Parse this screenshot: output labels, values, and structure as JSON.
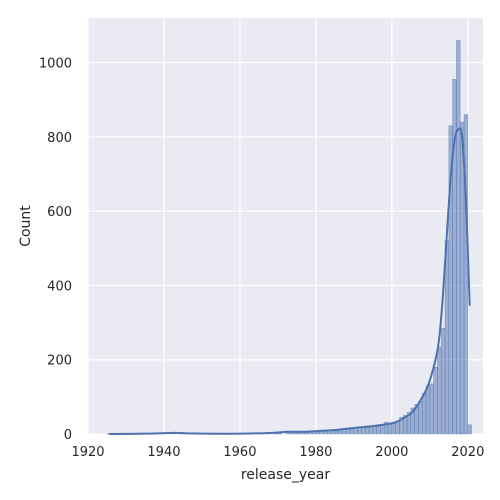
{
  "chart_data": {
    "type": "bar",
    "title": "",
    "xlabel": "release_year",
    "ylabel": "Count",
    "xlim": [
      1920,
      2024
    ],
    "ylim": [
      0,
      1120
    ],
    "x_ticks": [
      1920,
      1940,
      1960,
      1980,
      2000,
      2020
    ],
    "y_ticks": [
      0,
      200,
      400,
      600,
      800,
      1000
    ],
    "grid": true,
    "background": "#eaeaf2",
    "grid_color": "#ffffff",
    "bar_color": "#4c72b0",
    "kde_color": "#4c72b0",
    "bin_width": 1,
    "bins": [
      {
        "x": 1925,
        "y": 1
      },
      {
        "x": 1942,
        "y": 2
      },
      {
        "x": 1944,
        "y": 3
      },
      {
        "x": 1945,
        "y": 2
      },
      {
        "x": 1954,
        "y": 1
      },
      {
        "x": 1960,
        "y": 1
      },
      {
        "x": 1962,
        "y": 1
      },
      {
        "x": 1965,
        "y": 1
      },
      {
        "x": 1967,
        "y": 2
      },
      {
        "x": 1969,
        "y": 3
      },
      {
        "x": 1970,
        "y": 2
      },
      {
        "x": 1972,
        "y": 5
      },
      {
        "x": 1973,
        "y": 8
      },
      {
        "x": 1974,
        "y": 6
      },
      {
        "x": 1975,
        "y": 4
      },
      {
        "x": 1976,
        "y": 5
      },
      {
        "x": 1977,
        "y": 4
      },
      {
        "x": 1978,
        "y": 5
      },
      {
        "x": 1979,
        "y": 6
      },
      {
        "x": 1980,
        "y": 7
      },
      {
        "x": 1981,
        "y": 8
      },
      {
        "x": 1982,
        "y": 10
      },
      {
        "x": 1983,
        "y": 9
      },
      {
        "x": 1984,
        "y": 10
      },
      {
        "x": 1985,
        "y": 8
      },
      {
        "x": 1986,
        "y": 11
      },
      {
        "x": 1987,
        "y": 9
      },
      {
        "x": 1988,
        "y": 14
      },
      {
        "x": 1989,
        "y": 13
      },
      {
        "x": 1990,
        "y": 17
      },
      {
        "x": 1991,
        "y": 16
      },
      {
        "x": 1992,
        "y": 20
      },
      {
        "x": 1993,
        "y": 18
      },
      {
        "x": 1994,
        "y": 20
      },
      {
        "x": 1995,
        "y": 23
      },
      {
        "x": 1996,
        "y": 20
      },
      {
        "x": 1997,
        "y": 25
      },
      {
        "x": 1998,
        "y": 32
      },
      {
        "x": 1999,
        "y": 28
      },
      {
        "x": 2000,
        "y": 30
      },
      {
        "x": 2001,
        "y": 35
      },
      {
        "x": 2002,
        "y": 45
      },
      {
        "x": 2003,
        "y": 50
      },
      {
        "x": 2004,
        "y": 58
      },
      {
        "x": 2005,
        "y": 70
      },
      {
        "x": 2006,
        "y": 80
      },
      {
        "x": 2007,
        "y": 88
      },
      {
        "x": 2008,
        "y": 110
      },
      {
        "x": 2009,
        "y": 130
      },
      {
        "x": 2010,
        "y": 135
      },
      {
        "x": 2011,
        "y": 180
      },
      {
        "x": 2012,
        "y": 235
      },
      {
        "x": 2013,
        "y": 285
      },
      {
        "x": 2014,
        "y": 520
      },
      {
        "x": 2015,
        "y": 830
      },
      {
        "x": 2016,
        "y": 955
      },
      {
        "x": 2017,
        "y": 1060
      },
      {
        "x": 2018,
        "y": 840
      },
      {
        "x": 2019,
        "y": 860
      },
      {
        "x": 2020,
        "y": 25
      }
    ],
    "kde": [
      {
        "x": 1925,
        "y": 0
      },
      {
        "x": 1935,
        "y": 1
      },
      {
        "x": 1942,
        "y": 3
      },
      {
        "x": 1945,
        "y": 2
      },
      {
        "x": 1950,
        "y": 1
      },
      {
        "x": 1960,
        "y": 1
      },
      {
        "x": 1968,
        "y": 3
      },
      {
        "x": 1972,
        "y": 6
      },
      {
        "x": 1976,
        "y": 6
      },
      {
        "x": 1980,
        "y": 8
      },
      {
        "x": 1985,
        "y": 11
      },
      {
        "x": 1990,
        "y": 17
      },
      {
        "x": 1995,
        "y": 22
      },
      {
        "x": 2000,
        "y": 30
      },
      {
        "x": 2003,
        "y": 45
      },
      {
        "x": 2005,
        "y": 60
      },
      {
        "x": 2007,
        "y": 90
      },
      {
        "x": 2009,
        "y": 130
      },
      {
        "x": 2011,
        "y": 200
      },
      {
        "x": 2012,
        "y": 260
      },
      {
        "x": 2013,
        "y": 380
      },
      {
        "x": 2014,
        "y": 540
      },
      {
        "x": 2015,
        "y": 690
      },
      {
        "x": 2016,
        "y": 790
      },
      {
        "x": 2017,
        "y": 820
      },
      {
        "x": 2018,
        "y": 800
      },
      {
        "x": 2019,
        "y": 630
      },
      {
        "x": 2020,
        "y": 345
      }
    ]
  }
}
